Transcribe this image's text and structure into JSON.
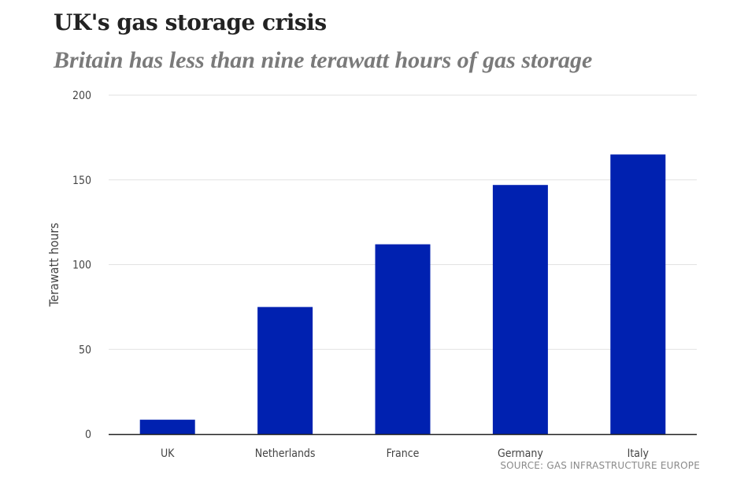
{
  "colors": {
    "bar": "#0021b0",
    "grid": "#e2e2e2",
    "axis": "#222222",
    "tick_text": "#444444",
    "title": "#222222",
    "subtitle": "#7a7a7a",
    "source": "#8a8a8a"
  },
  "chart_data": {
    "type": "bar",
    "title": "UK's gas storage crisis",
    "subtitle": "Britain has less than nine terawatt hours of gas storage",
    "xlabel": "",
    "ylabel": "Terawatt hours",
    "categories": [
      "UK",
      "Netherlands",
      "France",
      "Germany",
      "Italy"
    ],
    "values": [
      8.5,
      75,
      112,
      147,
      165
    ],
    "ylim": [
      0,
      200
    ],
    "yticks": [
      0,
      50,
      100,
      150,
      200
    ],
    "grid": true,
    "legend": "none",
    "source": "SOURCE: GAS INFRASTRUCTURE EUROPE"
  }
}
